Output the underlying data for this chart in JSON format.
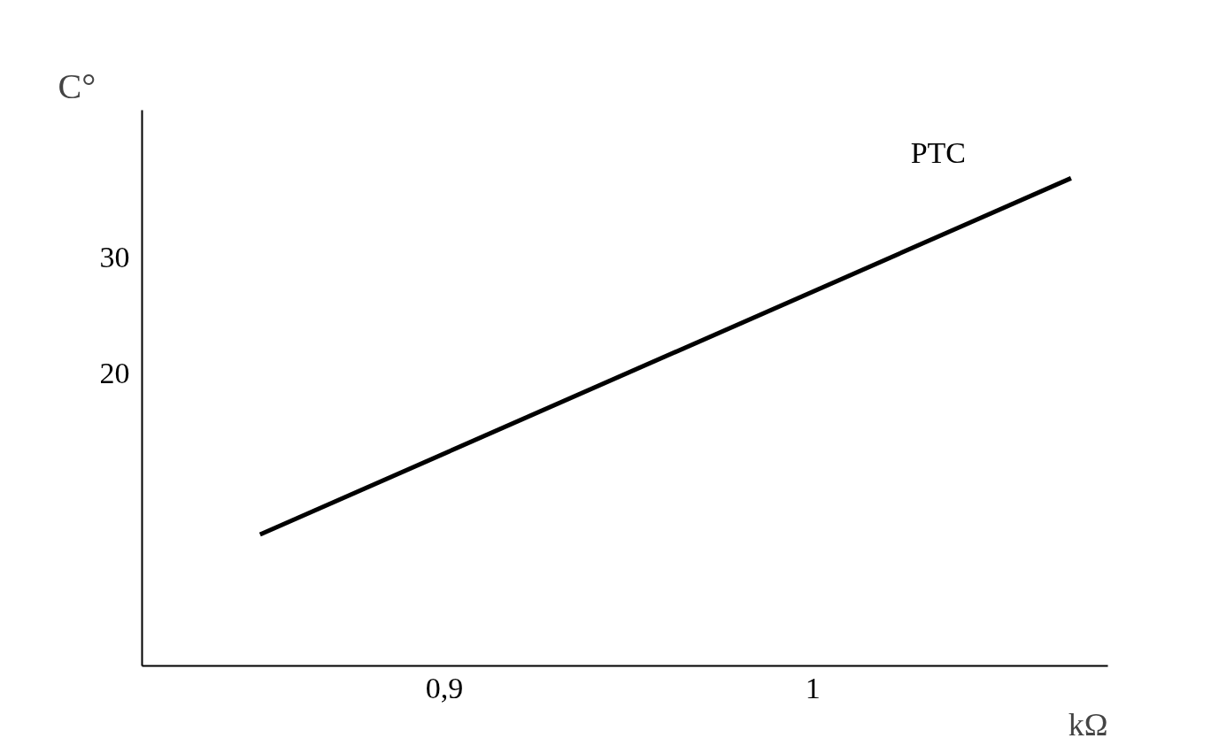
{
  "chart_data": {
    "type": "line",
    "xlabel": "kΩ",
    "ylabel": "C°",
    "x": [
      0.85,
      1.07
    ],
    "series": [
      {
        "name": "PTC",
        "color": "#000000",
        "values": [
          6.0,
          36.9
        ]
      }
    ],
    "xlim": [
      0.818,
      1.08
    ],
    "ylim": [
      -5.4,
      42.8
    ],
    "xticks": [
      {
        "value": 0.9,
        "label": "0,9"
      },
      1
    ],
    "yticks": [
      20,
      30
    ],
    "grid": false,
    "marker": "none",
    "line_style": "solid"
  }
}
